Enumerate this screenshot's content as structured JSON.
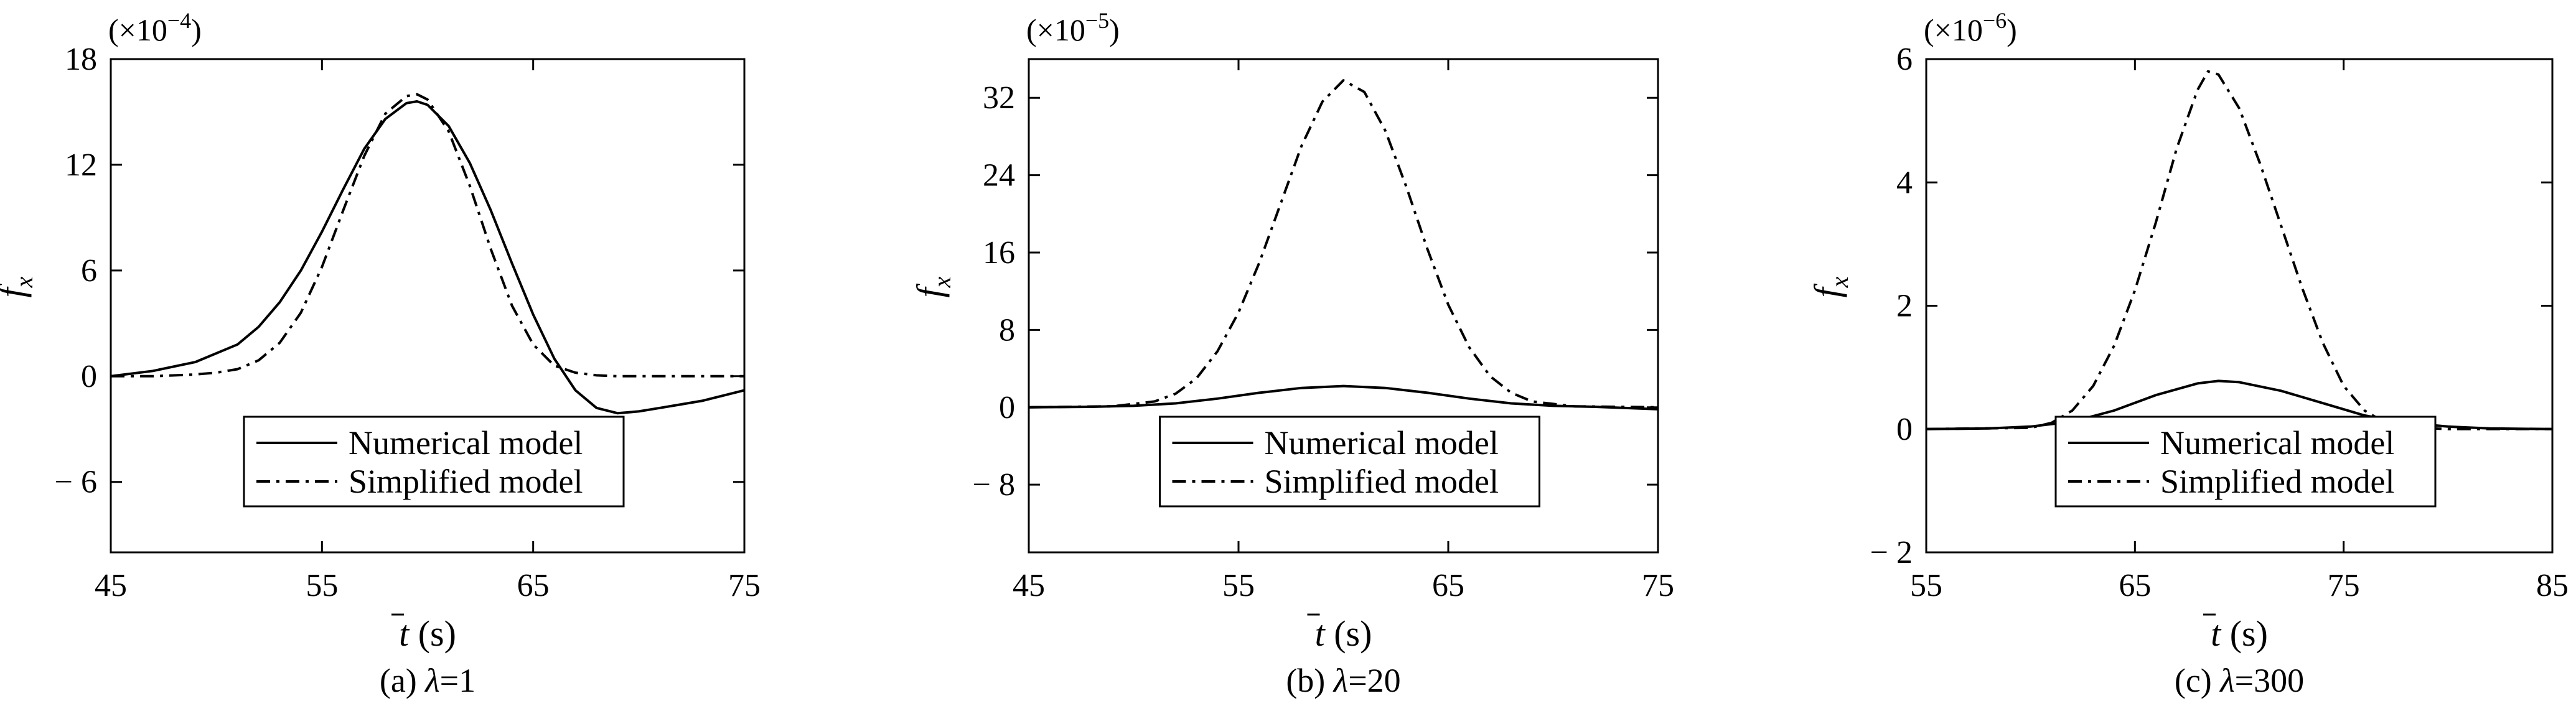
{
  "chart_data": [
    {
      "type": "line",
      "caption": "(a) λ=1",
      "caption_prefix": "(a) ",
      "caption_symbol": "λ",
      "caption_value": "=1",
      "scale_text": "(×10",
      "scale_exp": "−4",
      "scale_close": ")",
      "ylabel": "f",
      "ylabel_sub": "x",
      "xlabel": "t",
      "xlabel_unit": "(s)",
      "xlim": [
        45,
        75
      ],
      "ylim": [
        -10,
        18
      ],
      "xticks": [
        45,
        55,
        65,
        75
      ],
      "xtick_labels": [
        "45",
        "55",
        "65",
        "75"
      ],
      "yticks": [
        -6,
        0,
        6,
        12,
        18
      ],
      "ytick_labels": [
        "− 6",
        "0",
        "6",
        "12",
        "18"
      ],
      "legend_position": "bottom-center",
      "series": [
        {
          "name": "Numerical model",
          "style": "solid",
          "x": [
            45,
            47,
            49,
            51,
            52,
            53,
            54,
            55,
            56,
            57,
            58,
            59,
            59.5,
            60,
            61,
            62,
            63,
            64,
            65,
            66,
            67,
            68,
            69,
            70,
            71,
            72,
            73,
            74,
            75
          ],
          "y": [
            0,
            0.3,
            0.8,
            1.8,
            2.8,
            4.2,
            6.0,
            8.2,
            10.6,
            12.9,
            14.6,
            15.5,
            15.6,
            15.4,
            14.2,
            12.1,
            9.4,
            6.4,
            3.5,
            1.0,
            -0.8,
            -1.8,
            -2.1,
            -2.0,
            -1.8,
            -1.6,
            -1.4,
            -1.1,
            -0.8
          ]
        },
        {
          "name": "Simplified model",
          "style": "dash-dot",
          "x": [
            45,
            47,
            49,
            50,
            51,
            52,
            53,
            54,
            55,
            56,
            57,
            58,
            59,
            59.5,
            60,
            61,
            62,
            63,
            64,
            65,
            66,
            67,
            68,
            69,
            70,
            72,
            75
          ],
          "y": [
            0,
            0,
            0.1,
            0.2,
            0.4,
            0.9,
            1.9,
            3.6,
            6.2,
            9.4,
            12.5,
            14.9,
            15.9,
            16.0,
            15.7,
            13.9,
            10.8,
            7.2,
            4.0,
            1.8,
            0.6,
            0.2,
            0.05,
            0,
            0,
            0,
            0
          ]
        }
      ]
    },
    {
      "type": "line",
      "caption": "(b) λ=20",
      "caption_prefix": "(b) ",
      "caption_symbol": "λ",
      "caption_value": "=20",
      "scale_text": "(×10",
      "scale_exp": "−5",
      "scale_close": ")",
      "ylabel": "f",
      "ylabel_sub": "x",
      "xlabel": "t",
      "xlabel_unit": "(s)",
      "xlim": [
        45,
        75
      ],
      "ylim": [
        -15,
        36
      ],
      "xticks": [
        45,
        55,
        65,
        75
      ],
      "xtick_labels": [
        "45",
        "55",
        "65",
        "75"
      ],
      "yticks": [
        -8,
        0,
        8,
        16,
        24,
        32
      ],
      "ytick_labels": [
        "− 8",
        "0",
        "8",
        "16",
        "24",
        "32"
      ],
      "legend_position": "bottom-center",
      "series": [
        {
          "name": "Numerical model",
          "style": "solid",
          "x": [
            45,
            48,
            50,
            52,
            54,
            56,
            58,
            60,
            62,
            64,
            66,
            68,
            70,
            72,
            75
          ],
          "y": [
            0,
            0.05,
            0.15,
            0.4,
            0.9,
            1.5,
            2.0,
            2.2,
            2.0,
            1.5,
            0.9,
            0.4,
            0.15,
            0.05,
            -0.2
          ]
        },
        {
          "name": "Simplified model",
          "style": "dash-dot",
          "x": [
            45,
            49,
            51,
            52,
            53,
            54,
            55,
            56,
            57,
            58,
            59,
            60,
            61,
            62,
            63,
            64,
            65,
            66,
            67,
            68,
            69,
            71,
            75
          ],
          "y": [
            0,
            0.1,
            0.6,
            1.4,
            3.0,
            5.8,
            9.8,
            15.0,
            21.0,
            27.0,
            31.6,
            33.8,
            32.6,
            28.6,
            22.8,
            16.4,
            10.6,
            6.2,
            3.2,
            1.5,
            0.6,
            0.1,
            0
          ]
        }
      ]
    },
    {
      "type": "line",
      "caption": "(c) λ=300",
      "caption_prefix": "(c) ",
      "caption_symbol": "λ",
      "caption_value": "=300",
      "scale_text": "(×10",
      "scale_exp": "−6",
      "scale_close": ")",
      "ylabel": "f",
      "ylabel_sub": "x",
      "xlabel": "t",
      "xlabel_unit": "(s)",
      "xlim": [
        55,
        85
      ],
      "ylim": [
        -2,
        6
      ],
      "xticks": [
        55,
        65,
        75,
        85
      ],
      "xtick_labels": [
        "55",
        "65",
        "75",
        "85"
      ],
      "yticks": [
        -2,
        0,
        2,
        4,
        6
      ],
      "ytick_labels": [
        "− 2",
        "0",
        "2",
        "4",
        "6"
      ],
      "legend_position": "bottom-center",
      "series": [
        {
          "name": "Numerical model",
          "style": "solid",
          "x": [
            55,
            58,
            60,
            62,
            64,
            66,
            68,
            69,
            70,
            72,
            74,
            76,
            78,
            80,
            82,
            85
          ],
          "y": [
            0,
            0.01,
            0.04,
            0.12,
            0.3,
            0.55,
            0.74,
            0.78,
            0.76,
            0.62,
            0.42,
            0.22,
            0.1,
            0.04,
            0.01,
            0
          ]
        },
        {
          "name": "Simplified model",
          "style": "dash-dot",
          "x": [
            55,
            60,
            61,
            62,
            63,
            64,
            65,
            66,
            67,
            68,
            68.5,
            69,
            70,
            71,
            72,
            73,
            74,
            75,
            76,
            77,
            78,
            80,
            85
          ],
          "y": [
            0,
            0.02,
            0.1,
            0.3,
            0.7,
            1.35,
            2.25,
            3.35,
            4.55,
            5.5,
            5.8,
            5.75,
            5.2,
            4.3,
            3.3,
            2.3,
            1.4,
            0.7,
            0.3,
            0.1,
            0.03,
            0,
            0
          ]
        }
      ]
    }
  ]
}
